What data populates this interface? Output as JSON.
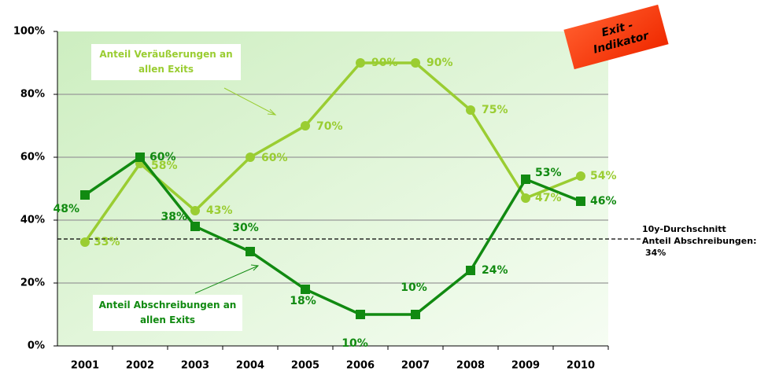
{
  "chart_data": {
    "type": "line",
    "categories": [
      "2001",
      "2002",
      "2003",
      "2004",
      "2005",
      "2006",
      "2007",
      "2008",
      "2009",
      "2010"
    ],
    "series": [
      {
        "name": "Anteil Abschreibungen an allen Exits",
        "color": "#118a11",
        "marker": "square",
        "values": [
          48,
          60,
          38,
          30,
          18,
          10,
          10,
          24,
          53,
          46
        ],
        "value_labels": [
          "48%",
          "60%",
          "38%",
          "30%",
          "18%",
          "10%",
          "10%",
          "24%",
          "53%",
          "46%"
        ]
      },
      {
        "name": "Anteil Veräußerungen an allen Exits",
        "color": "#9acd32",
        "marker": "circle",
        "values": [
          33,
          58,
          43,
          60,
          70,
          90,
          90,
          75,
          47,
          54
        ],
        "value_labels": [
          "33%",
          "58%",
          "43%",
          "60%",
          "70%",
          "90%",
          "90%",
          "75%",
          "47%",
          "54%"
        ]
      }
    ],
    "ylim": [
      0,
      100
    ],
    "yticks": [
      {
        "value": 0,
        "label": "0%"
      },
      {
        "value": 20,
        "label": "20%"
      },
      {
        "value": 40,
        "label": "40%"
      },
      {
        "value": 60,
        "label": "60%"
      },
      {
        "value": 80,
        "label": "80%"
      },
      {
        "value": 100,
        "label": "100%"
      }
    ],
    "grid": true,
    "reference_line": {
      "value": 34,
      "label_lines": [
        "10y-Durchschnitt",
        "Anteil Abschreibungen:",
        "34%"
      ]
    },
    "badge": [
      "Exit -",
      "Indikator"
    ]
  }
}
